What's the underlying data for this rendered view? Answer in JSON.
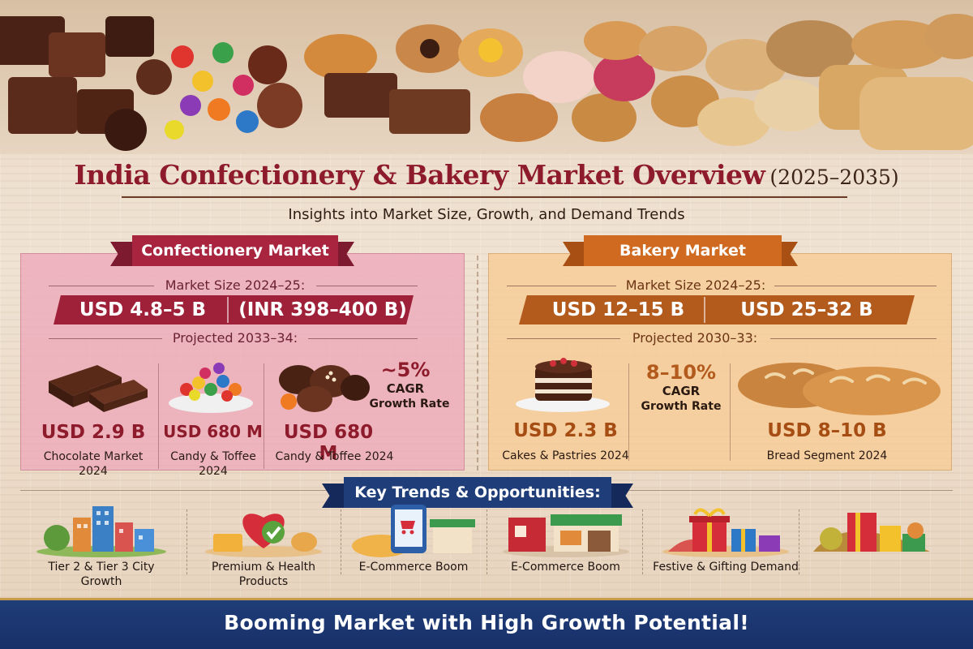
{
  "header": {
    "title": "India Confectionery & Bakery Market Overview",
    "title_years": "(2025–2035)",
    "subtitle": "Insights into Market Size, Growth, and Demand Trends"
  },
  "confectionery": {
    "ribbon": "Confectionery Market",
    "size_label": "Market Size 2024–25:",
    "size_usd": "USD 4.8–5 B",
    "size_inr": "(INR 398–400 B)",
    "projected_label": "Projected 2033–34:",
    "segments": [
      {
        "value": "USD 2.9 B",
        "caption_line1": "Chocolate Market",
        "caption_line2": "2024"
      },
      {
        "value": "USD 680 M",
        "caption_line1": "Candy & Toffee",
        "caption_line2": "2024"
      },
      {
        "value": "USD 680 M",
        "caption_line1": "Candy & Toffee 2024",
        "caption_line2": ""
      }
    ],
    "cagr": {
      "value": "~5%",
      "label": "CAGR",
      "sublabel": "Growth Rate"
    }
  },
  "bakery": {
    "ribbon": "Bakery Market",
    "size_label": "Market Size 2024–25:",
    "size_left": "USD 12–15 B",
    "size_right": "USD 25–32 B",
    "projected_label": "Projected 2030–33:",
    "segments": [
      {
        "value": "USD 2.3 B",
        "caption": "Cakes & Pastries 2024"
      },
      {
        "value": "USD 8–10 B",
        "caption": "Bread Segment 2024"
      }
    ],
    "cagr": {
      "value": "8–10%",
      "label": "CAGR",
      "sublabel": "Growth Rate"
    }
  },
  "trends": {
    "ribbon": "Key Trends & Opportunities:",
    "items": [
      {
        "icon": "city-buildings-icon",
        "line1": "Tier 2 & Tier 3 City",
        "line2": "Growth"
      },
      {
        "icon": "heart-health-icon",
        "line1": "Premium & Health",
        "line2": "Products"
      },
      {
        "icon": "ecommerce-tablet-icon",
        "line1": "E-Commerce Boom",
        "line2": ""
      },
      {
        "icon": "storefront-icon",
        "line1": "E-Commerce Boom",
        "line2": ""
      },
      {
        "icon": "gift-boxes-icon",
        "line1": "Festive & Gifting Demand",
        "line2": ""
      },
      {
        "icon": "gift-hamper-icon",
        "line1": "",
        "line2": ""
      }
    ]
  },
  "footer": {
    "text": "Booming Market with High Growth Potential!"
  },
  "colors": {
    "title": "#8e1b2c",
    "confectionery_accent": "#a8243f",
    "bakery_accent": "#d06a20",
    "navy": "#1f3d78",
    "confectionery_panel": "#edabbb",
    "bakery_panel": "#f6cc96"
  }
}
